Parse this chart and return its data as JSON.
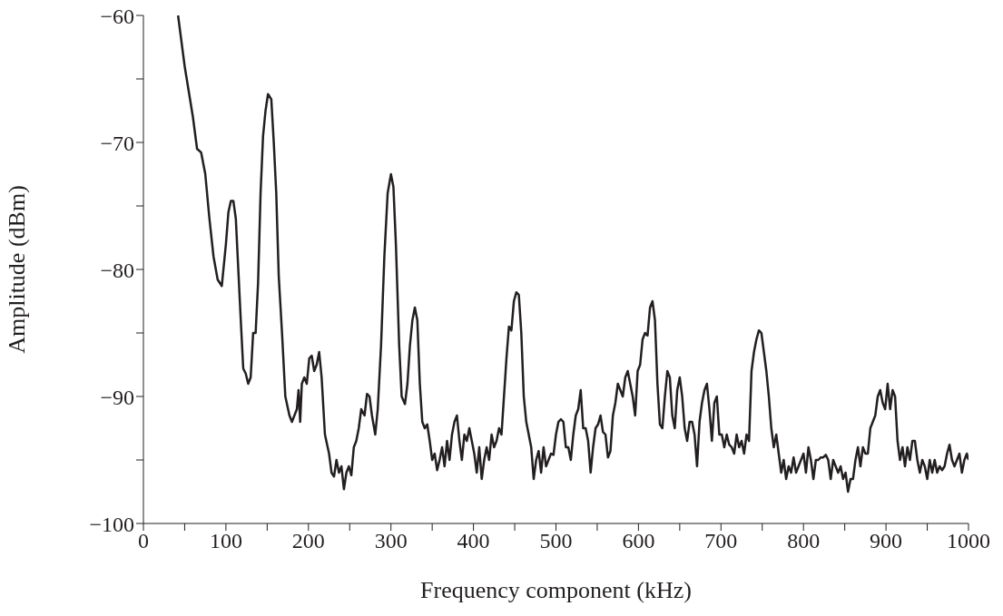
{
  "chart_data": {
    "type": "line",
    "xlabel": "Frequency component (kHz)",
    "ylabel": "Amplitude (dBm)",
    "xlim": [
      0,
      1000
    ],
    "ylim": [
      -100,
      -60
    ],
    "xticks": [
      0,
      {
        "value": 50,
        "label": null
      },
      100,
      {
        "value": 150,
        "label": null
      },
      200,
      {
        "value": 250,
        "label": null
      },
      300,
      {
        "value": 350,
        "label": null
      },
      400,
      {
        "value": 450,
        "label": null
      },
      500,
      {
        "value": 550,
        "label": null
      },
      600,
      {
        "value": 650,
        "label": null
      },
      700,
      {
        "value": 750,
        "label": null
      },
      800,
      {
        "value": 850,
        "label": null
      },
      900,
      {
        "value": 950,
        "label": null
      },
      1000
    ],
    "yticks": [
      -100,
      {
        "value": -95,
        "label": null
      },
      -90,
      {
        "value": -85,
        "label": null
      },
      -80,
      {
        "value": -75,
        "label": null
      },
      -70,
      {
        "value": -65,
        "label": null
      },
      -60
    ],
    "grid": false,
    "legend": false,
    "marker": "none",
    "line_style": "solid",
    "series": [
      {
        "color": "#231f20",
        "x": [
          42,
          50,
          60,
          65,
          70,
          75,
          80,
          85,
          90,
          95,
          100,
          103,
          106,
          109,
          112,
          115,
          118,
          121,
          124,
          127,
          130,
          133,
          136,
          139,
          142,
          145,
          148,
          151,
          155,
          158,
          161,
          164,
          168,
          172,
          177,
          180,
          183,
          186,
          188,
          190,
          192,
          195,
          198,
          201,
          204,
          207,
          210,
          213,
          216,
          220,
          225,
          228,
          231,
          234,
          237,
          240,
          243,
          246,
          249,
          252,
          255,
          258,
          261,
          264,
          268,
          271,
          274,
          277,
          281,
          284,
          288,
          292,
          296,
          300,
          303,
          306,
          310,
          313,
          317,
          320,
          323,
          326,
          329,
          332,
          335,
          338,
          341,
          344,
          347,
          350,
          353,
          356,
          359,
          362,
          365,
          368,
          371,
          374,
          377,
          380,
          383,
          386,
          389,
          392,
          395,
          398,
          401,
          404,
          407,
          410,
          413,
          416,
          419,
          422,
          425,
          428,
          431,
          434,
          437,
          440,
          443,
          446,
          449,
          452,
          455,
          458,
          461,
          464,
          467,
          470,
          473,
          476,
          479,
          482,
          485,
          488,
          491,
          494,
          497,
          500,
          503,
          506,
          509,
          512,
          515,
          518,
          521,
          524,
          527,
          530,
          533,
          536,
          539,
          542,
          545,
          548,
          551,
          554,
          557,
          560,
          563,
          566,
          569,
          572,
          575,
          578,
          581,
          584,
          587,
          590,
          593,
          596,
          599,
          602,
          605,
          608,
          611,
          614,
          617,
          620,
          623,
          626,
          629,
          632,
          635,
          638,
          641,
          644,
          647,
          650,
          653,
          656,
          659,
          662,
          665,
          668,
          671,
          674,
          677,
          680,
          683,
          686,
          689,
          692,
          695,
          698,
          701,
          704,
          707,
          710,
          713,
          716,
          719,
          722,
          725,
          728,
          731,
          734,
          737,
          740,
          743,
          746,
          749,
          752,
          755,
          758,
          761,
          764,
          767,
          770,
          773,
          776,
          779,
          782,
          785,
          788,
          791,
          794,
          797,
          800,
          803,
          806,
          809,
          812,
          815,
          818,
          821,
          824,
          827,
          830,
          833,
          836,
          839,
          842,
          845,
          848,
          851,
          854,
          857,
          860,
          863,
          866,
          869,
          872,
          875,
          878,
          881,
          884,
          887,
          890,
          893,
          896,
          899,
          902,
          905,
          908,
          911,
          914,
          917,
          920,
          923,
          926,
          929,
          932,
          935,
          938,
          941,
          944,
          947,
          950,
          953,
          956,
          959,
          962,
          965,
          968,
          971,
          974,
          977,
          980,
          983,
          986,
          989,
          992,
          995,
          998,
          1000
        ],
        "values": [
          -60,
          -64,
          -68,
          -70.5,
          -70.8,
          -72.5,
          -76,
          -79,
          -80.8,
          -81.3,
          -78,
          -75.5,
          -74.6,
          -74.6,
          -76,
          -80,
          -84,
          -87.8,
          -88.2,
          -89,
          -88.5,
          -85,
          -85,
          -81,
          -74,
          -69.5,
          -67.5,
          -66.2,
          -66.6,
          -70,
          -74,
          -80.5,
          -85,
          -90,
          -91.5,
          -92,
          -91.5,
          -91,
          -89.5,
          -92,
          -89,
          -88.5,
          -89,
          -87,
          -86.8,
          -88,
          -87.5,
          -86.5,
          -88.5,
          -93,
          -94.5,
          -96,
          -96.3,
          -95,
          -96,
          -95.5,
          -97.3,
          -96,
          -95.5,
          -96.2,
          -94,
          -93.5,
          -92.5,
          -91,
          -91.5,
          -89.8,
          -90,
          -91.5,
          -93,
          -91,
          -86,
          -79,
          -74,
          -72.5,
          -73.5,
          -78,
          -86,
          -90,
          -90.6,
          -89,
          -86,
          -84,
          -83,
          -84,
          -89,
          -92,
          -92.5,
          -92.2,
          -93.5,
          -95,
          -94.5,
          -95.8,
          -95,
          -94,
          -95.5,
          -93.5,
          -95,
          -93,
          -92,
          -91.5,
          -93.5,
          -95,
          -93,
          -93.5,
          -92.5,
          -93.5,
          -94.5,
          -96,
          -94,
          -96.5,
          -95,
          -94,
          -95,
          -93,
          -94,
          -93.5,
          -92.5,
          -93,
          -90,
          -87,
          -84.5,
          -84.8,
          -82.5,
          -81.8,
          -82,
          -85,
          -90,
          -92,
          -93,
          -94,
          -96.5,
          -95,
          -94.3,
          -96,
          -94,
          -95.5,
          -95,
          -94.5,
          -94.6,
          -93,
          -92,
          -91.8,
          -92,
          -94,
          -94,
          -95,
          -93,
          -91.5,
          -91,
          -89.5,
          -92.5,
          -92.5,
          -93.5,
          -96,
          -94,
          -92.5,
          -92.2,
          -91.5,
          -92.8,
          -93,
          -94.8,
          -94.3,
          -91.5,
          -90.5,
          -89,
          -89.5,
          -90,
          -88.5,
          -88,
          -89,
          -90,
          -91.5,
          -88,
          -87.5,
          -85.5,
          -85,
          -85.2,
          -83,
          -82.5,
          -84,
          -89,
          -92.2,
          -92.5,
          -90,
          -88,
          -88.5,
          -91.5,
          -92.5,
          -89.5,
          -88.5,
          -90,
          -92.5,
          -93.5,
          -92,
          -92,
          -93,
          -95.5,
          -92,
          -90.5,
          -89.5,
          -89,
          -91,
          -93.5,
          -90.5,
          -90,
          -93,
          -93,
          -94,
          -93,
          -93.8,
          -94,
          -94.5,
          -93,
          -94,
          -93.5,
          -94.5,
          -93,
          -93.5,
          -88,
          -86.5,
          -85.5,
          -84.8,
          -85,
          -86.5,
          -88,
          -90,
          -92.5,
          -94,
          -93,
          -94.5,
          -96,
          -95,
          -96.5,
          -95.5,
          -96,
          -94.8,
          -96,
          -95.5,
          -95,
          -94.5,
          -96,
          -94,
          -95,
          -96.5,
          -95,
          -95,
          -94.8,
          -94.8,
          -94.6,
          -95,
          -96.5,
          -95,
          -95.5,
          -96,
          -95.5,
          -96.5,
          -96,
          -97.5,
          -96.5,
          -96.5,
          -95,
          -94,
          -95.5,
          -94,
          -94.5,
          -94.5,
          -92.5,
          -92,
          -91.5,
          -90,
          -89.5,
          -90.5,
          -91,
          -89,
          -91,
          -89.5,
          -90,
          -93.5,
          -95,
          -94,
          -95.5,
          -94,
          -95,
          -93.5,
          -93.5,
          -95,
          -96,
          -95,
          -95.5,
          -96.5,
          -95,
          -96,
          -95,
          -96,
          -95.5,
          -95.8,
          -95.5,
          -94.5,
          -93.8,
          -95,
          -95.5,
          -95,
          -94.5,
          -96,
          -95,
          -94.5,
          -95
        ]
      }
    ]
  }
}
